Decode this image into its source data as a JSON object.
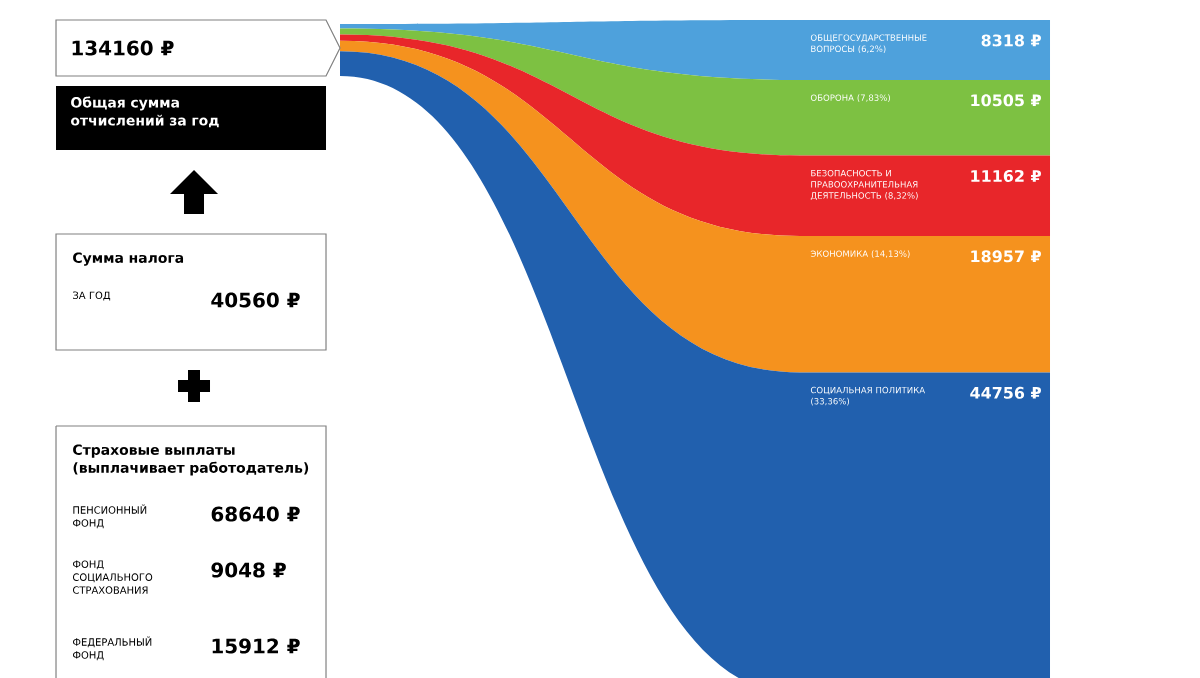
{
  "chart_data": {
    "type": "other",
    "categories": [
      "ОБЩЕГОСУДАРСТВЕННЫЕ ВОПРОСЫ (6,2%)",
      "ОБОРОНА (7,83%)",
      "БЕЗОПАСНОСТЬ И ПРАВООХРАНИТЕЛЬНАЯ ДЕЯТЕЛЬНОСТЬ (8,32%)",
      "ЭКОНОМИКА (14,13%)",
      "СОЦИАЛЬНАЯ ПОЛИТИКА (33,36%)"
    ],
    "values": [
      8318,
      10505,
      11162,
      18957,
      44756
    ],
    "colors": [
      "#4ea1dc",
      "#7dc142",
      "#e8262a",
      "#f5921e",
      "#2160ae"
    ],
    "value_labels": [
      "8318 ₽",
      "10505 ₽",
      "11162 ₽",
      "18957 ₽",
      "44756 ₽"
    ],
    "annotations": [
      "134160 ₽",
      "Общая сумма отчислений за год",
      "Сумма налога",
      "ЗА ГОД",
      "40560 ₽",
      "Страховые выплаты (выплачивает работодатель)",
      "ПЕНСИОННЫЙ ФОНД",
      "68640 ₽",
      "ФОНД СОЦИАЛЬНОГО СТРАХОВАНИЯ",
      "9048 ₽",
      "ФЕДЕРАЛЬНЫЙ ФОНД",
      "15912 ₽"
    ]
  }
}
